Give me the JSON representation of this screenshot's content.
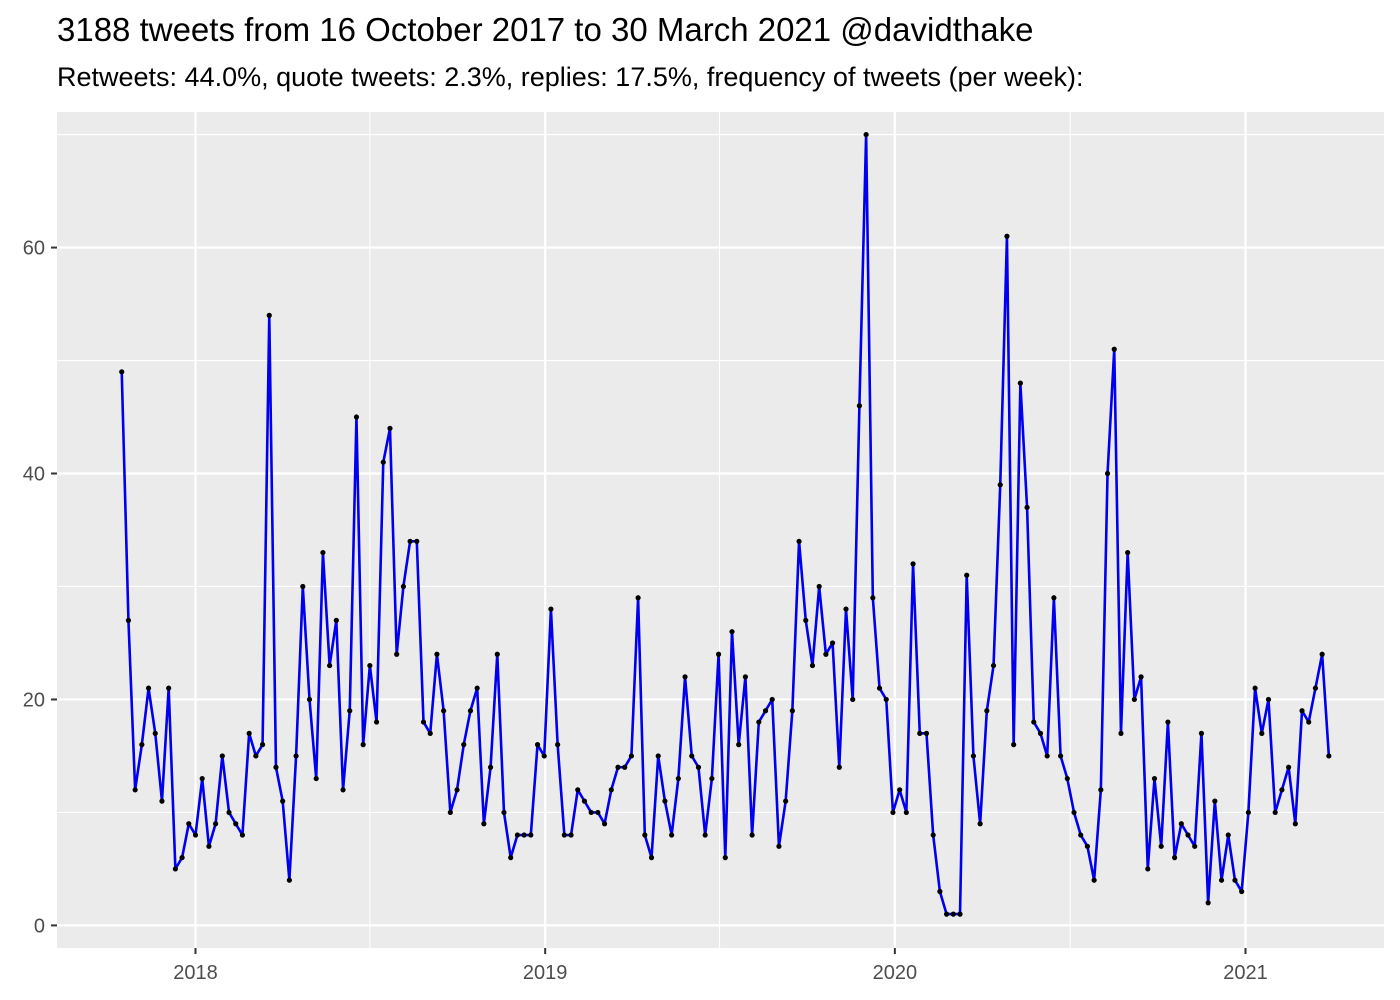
{
  "header": {
    "title": "3188 tweets from 16 October 2017 to 30 March 2021 @davidthake",
    "subtitle": "Retweets: 44.0%, quote tweets: 2.3%, replies: 17.5%, frequency of tweets (per week):"
  },
  "colors": {
    "line": "#0000ee",
    "point": "#000000",
    "panel": "#ebebeb",
    "grid": "#ffffff",
    "tick_text": "#4d4d4d"
  },
  "chart_data": {
    "type": "line",
    "title": "3188 tweets from 16 October 2017 to 30 March 2021 @davidthake",
    "subtitle": "Retweets: 44.0%, quote tweets: 2.3%, replies: 17.5%, frequency of tweets (per week):",
    "xlabel": "",
    "ylabel": "",
    "x_start": "2017-10-16",
    "x_end": "2021-03-29",
    "x_ticks": [
      "2018",
      "2019",
      "2020",
      "2021"
    ],
    "y_ticks": [
      0,
      20,
      40,
      60
    ],
    "ylim": [
      -2,
      72
    ],
    "grid": true,
    "legend": "none",
    "series": [
      {
        "values": [
          49,
          27,
          12,
          16,
          21,
          17,
          11,
          21,
          5,
          6,
          9,
          8,
          13,
          7,
          9,
          15,
          10,
          9,
          8,
          17,
          15,
          16,
          54,
          14,
          11,
          4,
          15,
          30,
          20,
          13,
          33,
          23,
          27,
          12,
          19,
          45,
          16,
          23,
          18,
          41,
          44,
          24,
          30,
          34,
          34,
          18,
          17,
          24,
          19,
          10,
          12,
          16,
          19,
          21,
          9,
          14,
          24,
          10,
          6,
          8,
          8,
          8,
          16,
          15,
          28,
          16,
          8,
          8,
          12,
          11,
          10,
          10,
          9,
          12,
          14,
          14,
          15,
          29,
          8,
          6,
          15,
          11,
          8,
          13,
          22,
          15,
          14,
          8,
          13,
          24,
          6,
          26,
          16,
          22,
          8,
          18,
          19,
          20,
          7,
          11,
          19,
          34,
          27,
          23,
          30,
          24,
          25,
          14,
          28,
          20,
          46,
          70,
          29,
          21,
          20,
          10,
          12,
          10,
          32,
          17,
          17,
          8,
          3,
          1,
          1,
          1,
          31,
          15,
          9,
          19,
          23,
          39,
          61,
          16,
          48,
          37,
          18,
          17,
          15,
          29,
          15,
          13,
          10,
          8,
          7,
          4,
          12,
          40,
          51,
          17,
          33,
          20,
          22,
          5,
          13,
          7,
          18,
          6,
          9,
          8,
          7,
          17,
          2,
          11,
          4,
          8,
          4,
          3,
          10,
          21,
          17,
          20,
          10,
          12,
          14,
          9,
          19,
          18,
          21,
          24,
          15
        ]
      }
    ]
  }
}
